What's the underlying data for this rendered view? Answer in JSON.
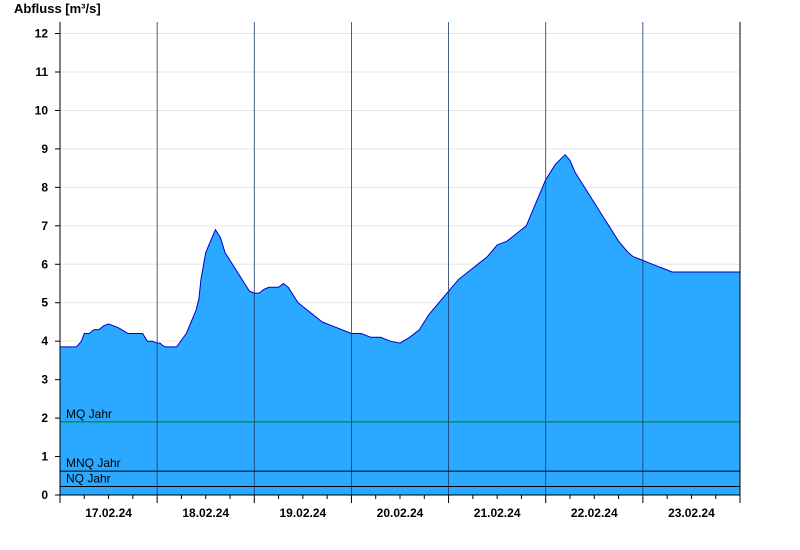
{
  "chart_data": {
    "type": "area",
    "ylabel": "Abfluss [m³/s]",
    "xlabel": "",
    "ylim": [
      0,
      12.3
    ],
    "yticks": [
      0,
      1,
      2,
      3,
      4,
      5,
      6,
      7,
      8,
      9,
      10,
      11,
      12
    ],
    "grid": true,
    "x_range_days": [
      0,
      7
    ],
    "x_tick_labels": [
      "17.02.24",
      "18.02.24",
      "19.02.24",
      "20.02.24",
      "21.02.24",
      "22.02.24",
      "23.02.24"
    ],
    "fill_color": "#2ba8ff",
    "line_color": "#0000c8",
    "series": [
      {
        "x": [
          0,
          0.17,
          0.22,
          0.25,
          0.3,
          0.35,
          0.4,
          0.45,
          0.5,
          0.6,
          0.7,
          0.75,
          0.8,
          0.85,
          0.9,
          0.95,
          1.0,
          1.03,
          1.05,
          1.08,
          1.1,
          1.2,
          1.3,
          1.35,
          1.4,
          1.43,
          1.45,
          1.5,
          1.6,
          1.65,
          1.7,
          1.75,
          1.8,
          1.85,
          1.9,
          1.95,
          2.0,
          2.05,
          2.1,
          2.15,
          2.2,
          2.25,
          2.3,
          2.35,
          2.4,
          2.45,
          2.5,
          2.55,
          2.6,
          2.65,
          2.7,
          2.75,
          2.8,
          2.9,
          3.0,
          3.1,
          3.2,
          3.3,
          3.4,
          3.5,
          3.6,
          3.7,
          3.8,
          3.9,
          4.0,
          4.1,
          4.2,
          4.3,
          4.4,
          4.5,
          4.6,
          4.7,
          4.8,
          4.9,
          5.0,
          5.1,
          5.2,
          5.25,
          5.3,
          5.4,
          5.45,
          5.5,
          5.55,
          5.6,
          5.65,
          5.7,
          5.75,
          5.8,
          5.85,
          5.9,
          5.95,
          6.0,
          6.05,
          6.1,
          6.15,
          6.2,
          6.25,
          6.3,
          6.35,
          6.4,
          6.45,
          6.5,
          6.55,
          6.6,
          6.65,
          6.7,
          6.75,
          6.8,
          6.85,
          6.9,
          6.95,
          7.0
        ],
        "y": [
          3.85,
          3.85,
          4.0,
          4.2,
          4.2,
          4.3,
          4.3,
          4.4,
          4.45,
          4.35,
          4.2,
          4.2,
          4.2,
          4.2,
          4.0,
          4.0,
          3.95,
          3.95,
          3.9,
          3.85,
          3.85,
          3.85,
          4.2,
          4.5,
          4.8,
          5.1,
          5.6,
          6.3,
          6.9,
          6.7,
          6.3,
          6.1,
          5.9,
          5.7,
          5.5,
          5.3,
          5.25,
          5.25,
          5.35,
          5.4,
          5.4,
          5.4,
          5.5,
          5.4,
          5.2,
          5.0,
          4.9,
          4.8,
          4.7,
          4.6,
          4.5,
          4.45,
          4.4,
          4.3,
          4.2,
          4.2,
          4.1,
          4.1,
          4.0,
          3.95,
          4.1,
          4.3,
          4.7,
          5.0,
          5.3,
          5.6,
          5.8,
          6.0,
          6.2,
          6.5,
          6.6,
          6.8,
          7.0,
          7.6,
          8.2,
          8.6,
          8.85,
          8.7,
          8.4,
          8.0,
          7.8,
          7.6,
          7.4,
          7.2,
          7.0,
          6.8,
          6.6,
          6.45,
          6.3,
          6.2,
          6.15,
          6.1,
          6.05,
          6.0,
          5.95,
          5.9,
          5.85,
          5.8,
          5.8,
          5.8,
          5.8,
          5.8,
          5.8,
          5.8,
          5.8,
          5.8,
          5.8,
          5.8,
          5.8,
          5.8,
          5.8,
          5.8
        ]
      }
    ],
    "reference_lines": [
      {
        "label": "MQ Jahr",
        "value": 1.9,
        "color": "#007f00"
      },
      {
        "label": "MNQ Jahr",
        "value": 0.62,
        "color": "#000000"
      },
      {
        "label": "NQ Jahr",
        "value": 0.22,
        "color": "#000000"
      }
    ]
  }
}
